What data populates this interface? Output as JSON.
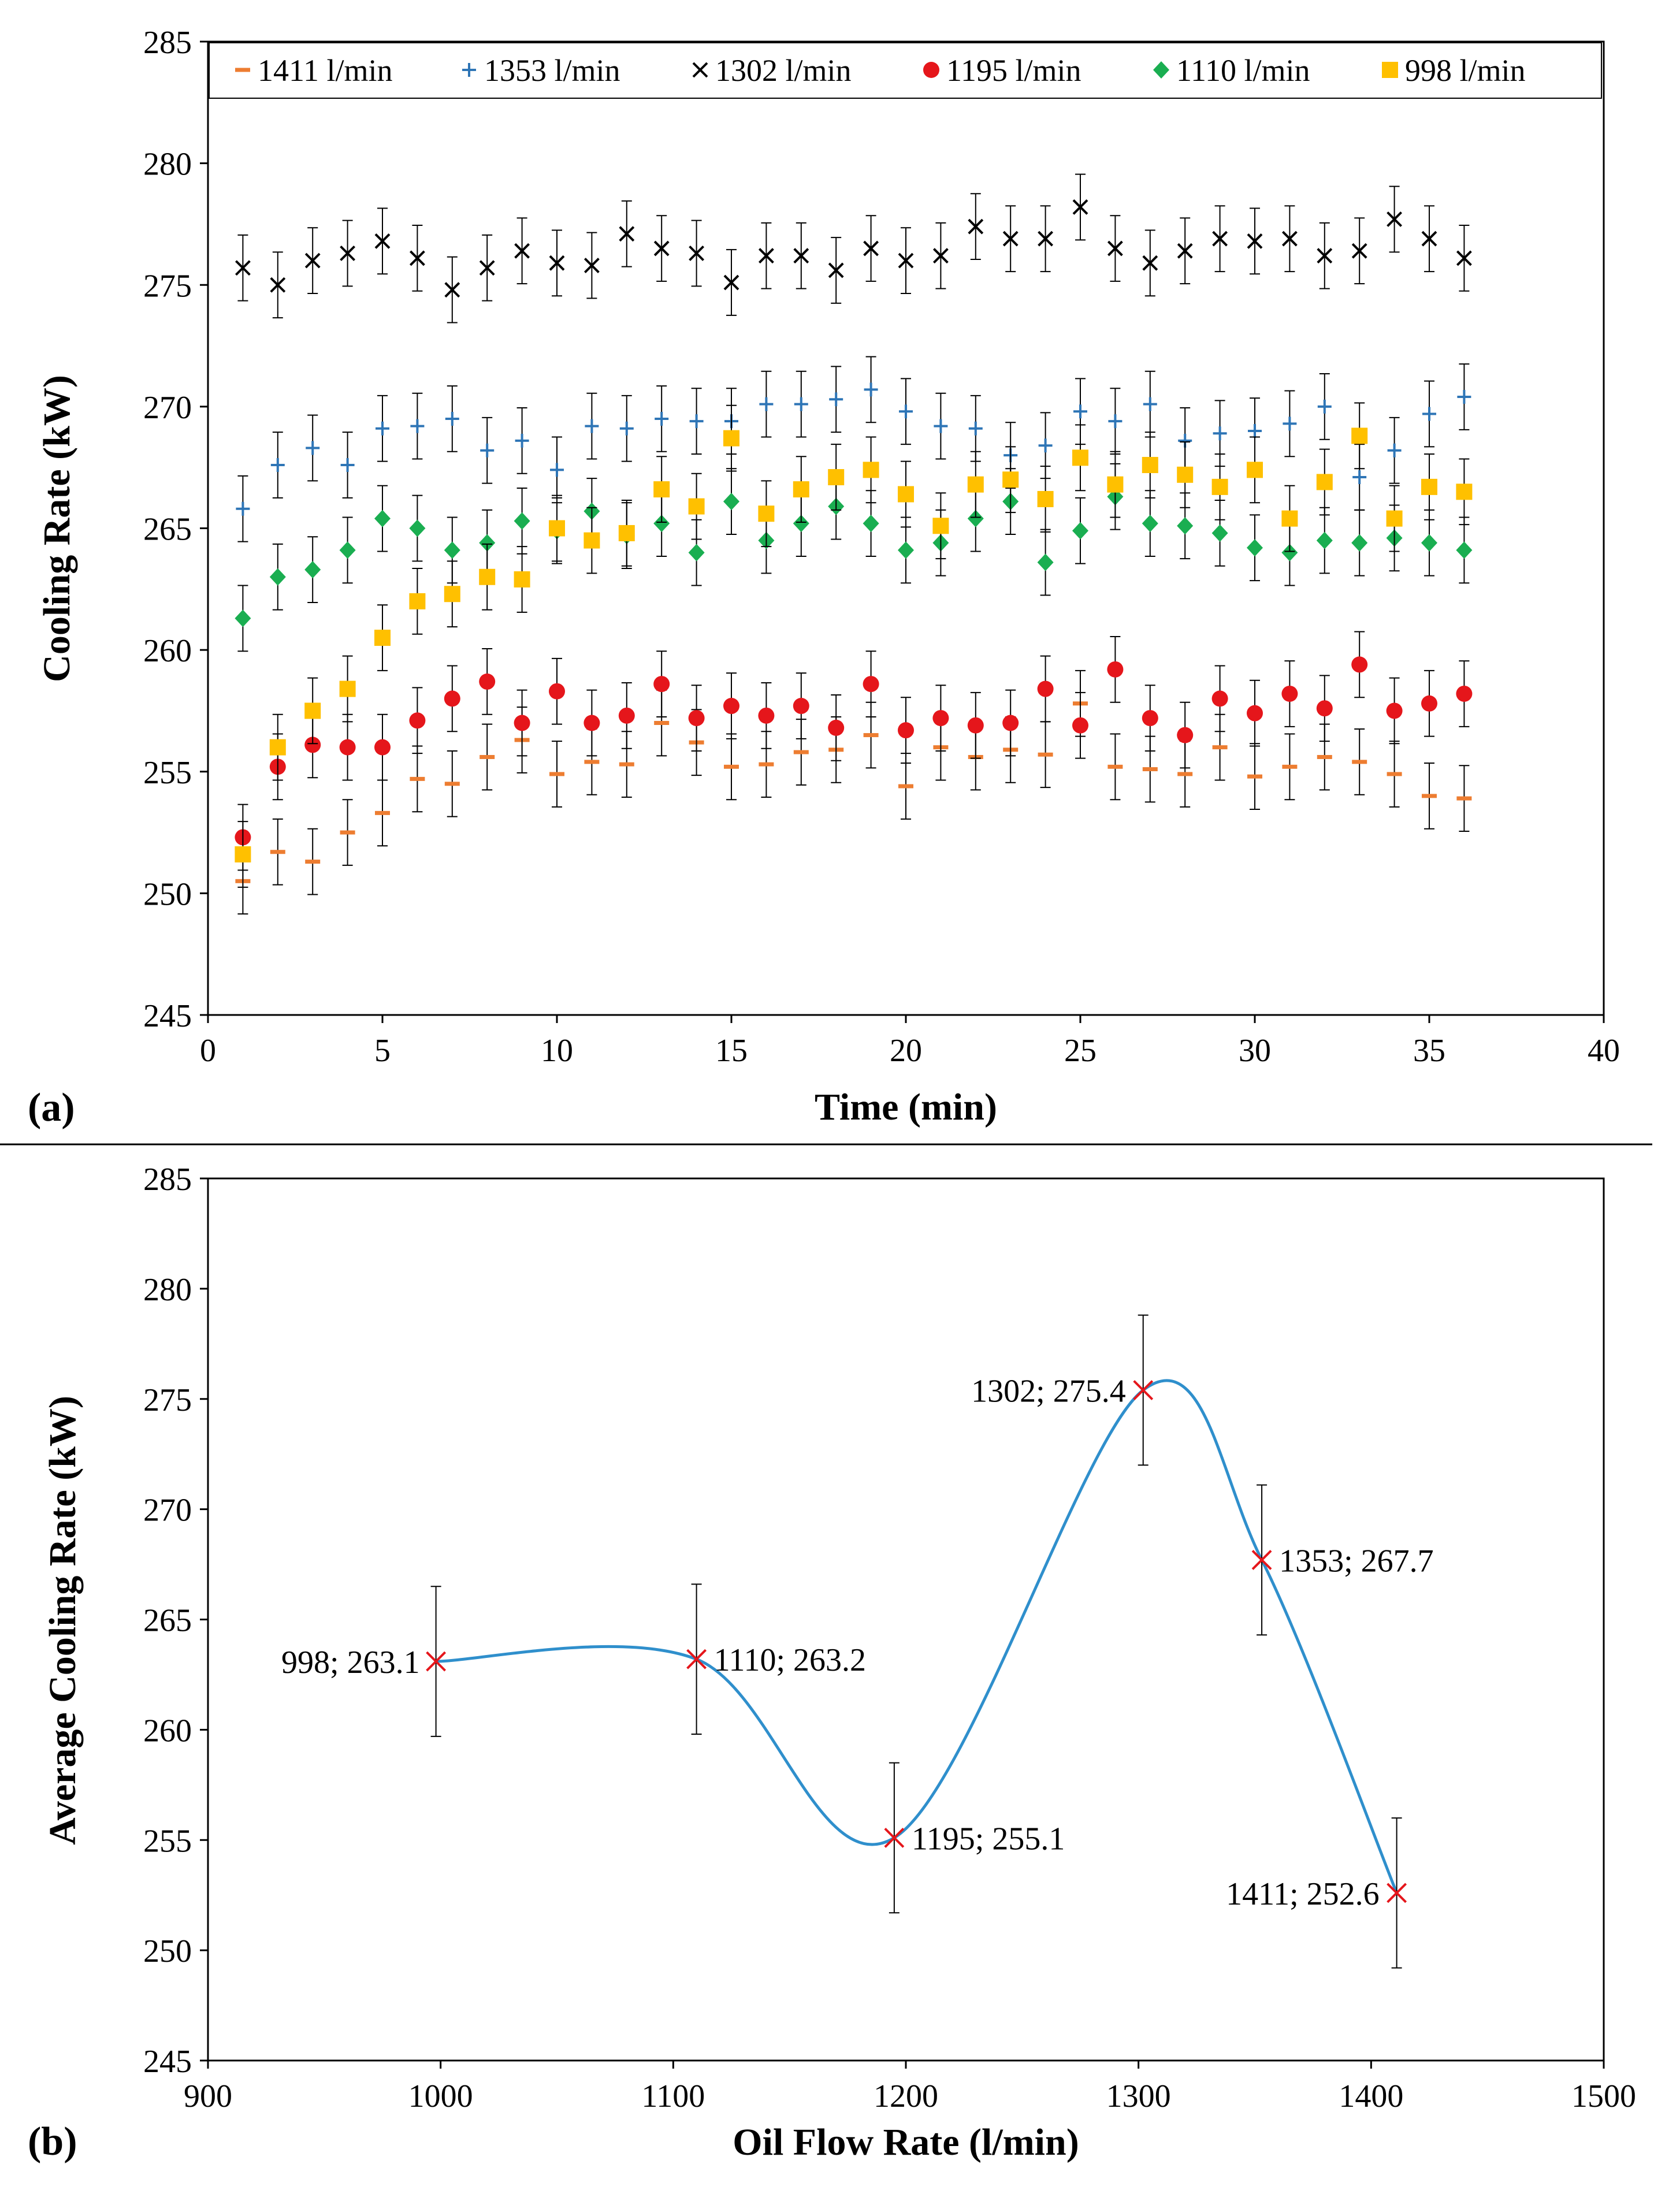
{
  "chart_data": [
    {
      "type": "scatter",
      "panel_label": "(a)",
      "title": "",
      "xlabel": "Time (min)",
      "ylabel": "Cooling  Rate (kW)",
      "xlim": [
        0,
        40
      ],
      "ylim": [
        245,
        285
      ],
      "xticks": [
        "0",
        "5",
        "10",
        "15",
        "20",
        "25",
        "30",
        "35",
        "40"
      ],
      "yticks": [
        "245",
        "250",
        "255",
        "260",
        "265",
        "270",
        "275",
        "280",
        "285"
      ],
      "error_bar_half_width": 1.35,
      "grid": false,
      "legend_position": "top",
      "x": [
        1,
        2,
        3,
        4,
        5,
        6,
        7,
        8,
        9,
        10,
        11,
        12,
        13,
        14,
        15,
        16,
        17,
        18,
        19,
        20,
        21,
        22,
        23,
        24,
        25,
        26,
        27,
        28,
        29,
        30,
        31,
        32,
        33,
        34,
        35,
        36
      ],
      "series": [
        {
          "name": "1411 l/min",
          "marker": "dash",
          "color": "#ED7D31",
          "values": [
            250.5,
            251.7,
            251.3,
            252.5,
            253.3,
            254.7,
            254.5,
            255.6,
            256.3,
            254.9,
            255.4,
            255.3,
            257.0,
            256.2,
            255.2,
            255.3,
            255.8,
            255.9,
            256.5,
            254.4,
            256.0,
            255.6,
            255.9,
            255.7,
            257.8,
            255.2,
            255.1,
            254.9,
            256.0,
            254.8,
            255.2,
            255.6,
            255.4,
            254.9,
            254.0,
            253.9
          ]
        },
        {
          "name": "1353 l/min",
          "marker": "plus",
          "color": "#2E75B6",
          "values": [
            265.8,
            267.6,
            268.3,
            267.6,
            269.1,
            269.2,
            269.5,
            268.2,
            268.6,
            267.4,
            269.2,
            269.1,
            269.5,
            269.4,
            269.4,
            270.1,
            270.1,
            270.3,
            270.7,
            269.8,
            269.2,
            269.1,
            268.0,
            268.4,
            269.8,
            269.4,
            270.1,
            268.6,
            268.9,
            269.0,
            269.3,
            270.0,
            267.1,
            268.2,
            269.7,
            270.4
          ]
        },
        {
          "name": "1302 l/min",
          "marker": "x",
          "color": "#000000",
          "values": [
            275.7,
            275.0,
            276.0,
            276.3,
            276.8,
            276.1,
            274.8,
            275.7,
            276.4,
            275.9,
            275.8,
            277.1,
            276.5,
            276.3,
            275.1,
            276.2,
            276.2,
            275.6,
            276.5,
            276.0,
            276.2,
            277.4,
            276.9,
            276.9,
            278.2,
            276.5,
            275.9,
            276.4,
            276.9,
            276.8,
            276.9,
            276.2,
            276.4,
            277.7,
            276.9,
            276.1
          ]
        },
        {
          "name": "1195 l/min",
          "marker": "circle",
          "color": "#E5161B",
          "values": [
            252.3,
            255.2,
            256.1,
            256.0,
            256.0,
            257.1,
            258.0,
            258.7,
            257.0,
            258.3,
            257.0,
            257.3,
            258.6,
            257.2,
            257.7,
            257.3,
            257.7,
            256.8,
            258.6,
            256.7,
            257.2,
            256.9,
            257.0,
            258.4,
            256.9,
            259.2,
            257.2,
            256.5,
            258.0,
            257.4,
            258.2,
            257.6,
            259.4,
            257.5,
            257.8,
            258.2
          ]
        },
        {
          "name": "1110 l/min",
          "marker": "diamond",
          "color": "#1AAE51",
          "values": [
            261.3,
            263.0,
            263.3,
            264.1,
            265.4,
            265.0,
            264.1,
            264.4,
            265.3,
            264.9,
            265.7,
            264.7,
            265.2,
            264.0,
            266.1,
            264.5,
            265.2,
            265.9,
            265.2,
            264.1,
            264.4,
            265.4,
            266.1,
            263.6,
            264.9,
            266.3,
            265.2,
            265.1,
            264.8,
            264.2,
            264.0,
            264.5,
            264.4,
            264.6,
            264.4,
            264.1
          ]
        },
        {
          "name": "998 l/min",
          "marker": "square",
          "color": "#FFC000",
          "values": [
            251.6,
            256.0,
            257.5,
            258.4,
            260.5,
            262.0,
            262.3,
            263.0,
            262.9,
            265.0,
            264.5,
            264.8,
            266.6,
            265.9,
            268.7,
            265.6,
            266.6,
            267.1,
            267.4,
            266.4,
            265.1,
            266.8,
            267.0,
            266.2,
            267.9,
            266.8,
            267.6,
            267.2,
            266.7,
            267.4,
            265.4,
            266.9,
            268.8,
            265.4,
            266.7,
            266.5
          ]
        }
      ]
    },
    {
      "type": "line",
      "panel_label": "(b)",
      "title": "",
      "xlabel": "Oil Flow Rate (l/min)",
      "ylabel": "Average Cooling  Rate (kW)",
      "xlim": [
        900,
        1500
      ],
      "ylim": [
        245,
        285
      ],
      "xticks": [
        "900",
        "1000",
        "1100",
        "1200",
        "1300",
        "1400",
        "1500"
      ],
      "yticks": [
        "245",
        "250",
        "255",
        "260",
        "265",
        "270",
        "275",
        "280",
        "285"
      ],
      "grid": false,
      "series": [
        {
          "name": "Average cooling rate",
          "color": "#2F8FCC",
          "marker_color": "#E5161B",
          "x": [
            998,
            1110,
            1195,
            1302,
            1353,
            1411
          ],
          "values": [
            263.1,
            263.2,
            255.1,
            275.4,
            267.7,
            252.6
          ],
          "error": [
            3.4,
            3.4,
            3.4,
            3.4,
            3.4,
            3.4
          ]
        }
      ],
      "data_labels": [
        "998;  263.1",
        "1110;  263.2",
        "1195;  255.1",
        "1302;  275.4",
        "1353;  267.7",
        "1411;  252.6"
      ]
    }
  ]
}
